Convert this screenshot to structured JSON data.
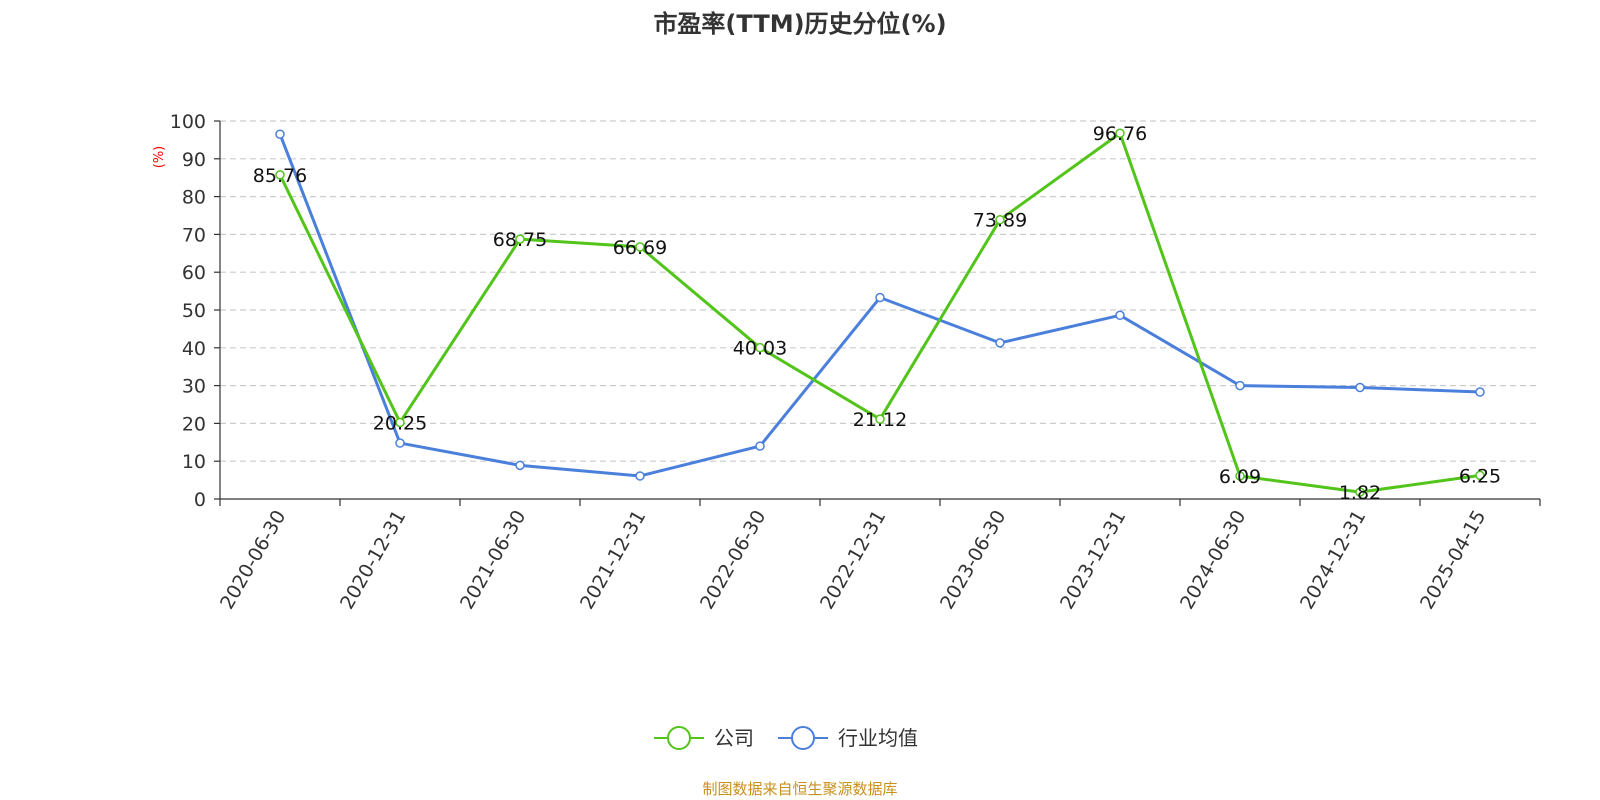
{
  "chart_data": {
    "type": "line",
    "title": "市盈率(TTM)历史分位(%)",
    "ylabel": "(%)",
    "ylim": [
      0,
      100
    ],
    "yticks": [
      0,
      10,
      20,
      30,
      40,
      50,
      60,
      70,
      80,
      90,
      100
    ],
    "categories": [
      "2020-06-30",
      "2020-12-31",
      "2021-06-30",
      "2021-12-31",
      "2022-06-30",
      "2022-12-31",
      "2023-06-30",
      "2023-12-31",
      "2024-06-30",
      "2024-12-31",
      "2025-04-15"
    ],
    "grid": true,
    "legend_position": "bottom",
    "series": [
      {
        "name": "公司",
        "color": "#52c41a",
        "values": [
          85.76,
          20.25,
          68.75,
          66.69,
          40.03,
          21.12,
          73.89,
          96.76,
          6.09,
          1.82,
          6.25
        ],
        "show_labels": true
      },
      {
        "name": "行业均值",
        "color": "#4a7fdb",
        "values": [
          96.5,
          14.8,
          8.9,
          6.1,
          14.0,
          53.3,
          41.3,
          48.6,
          30.0,
          29.5,
          28.3
        ],
        "show_labels": false
      }
    ],
    "source": "制图数据来自恒生聚源数据库"
  }
}
